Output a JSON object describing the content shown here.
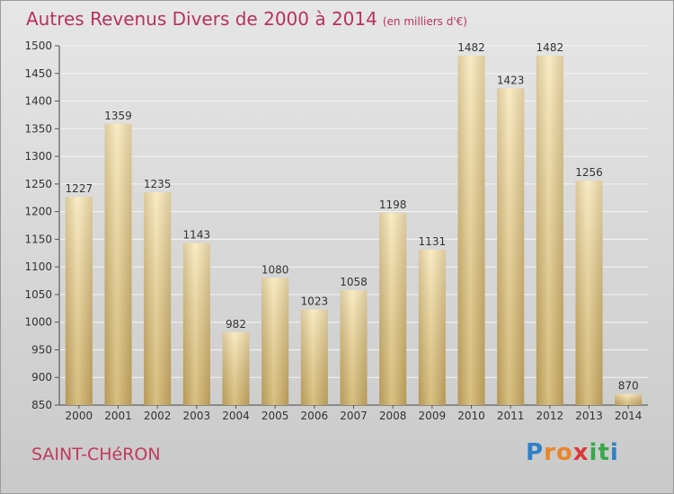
{
  "title": "Autres Revenus Divers de 2000 à 2014",
  "subtitle": "(en milliers d'€)",
  "city": "SAINT-CHéRON",
  "logo": {
    "letters": [
      "P",
      "r",
      "o",
      "x",
      "i",
      "t",
      "i"
    ],
    "colors": [
      "#2f80c7",
      "#e8862a",
      "#e8862a",
      "#d83a3a",
      "#3aa64a",
      "#3aa64a",
      "#2f80c7"
    ]
  },
  "colors": {
    "title": "#b8325a",
    "bar_light": "#f7e1a4",
    "bar_dark": "#c9ad6a"
  },
  "chart_data": {
    "type": "bar",
    "categories": [
      "2000",
      "2001",
      "2002",
      "2003",
      "2004",
      "2005",
      "2006",
      "2007",
      "2008",
      "2009",
      "2010",
      "2011",
      "2012",
      "2013",
      "2014"
    ],
    "values": [
      1227,
      1359,
      1235,
      1143,
      982,
      1080,
      1023,
      1058,
      1198,
      1131,
      1482,
      1423,
      1482,
      1256,
      870
    ],
    "title": "Autres Revenus Divers de 2000 à 2014",
    "subtitle": "(en milliers d'€)",
    "xlabel": "",
    "ylabel": "",
    "ylim": [
      850,
      1500
    ],
    "yticks": [
      850,
      900,
      950,
      1000,
      1050,
      1100,
      1150,
      1200,
      1250,
      1300,
      1350,
      1400,
      1450,
      1500
    ],
    "grid": true,
    "legend": "none"
  }
}
